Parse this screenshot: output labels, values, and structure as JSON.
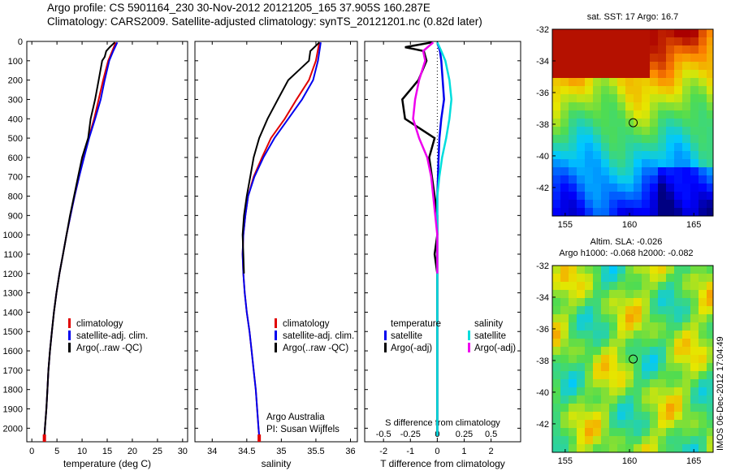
{
  "header": {
    "title_line1": "Argo profile: CS 5901164_230 30-Nov-2012 20121205_165 37.905S 160.287E",
    "title_line2": "Climatology: CARS2009. Satellite-adjusted climatology: synTS_20121201.nc (0.82d later)"
  },
  "colors": {
    "climatology": "#e00000",
    "satellite": "#0000ee",
    "argo": "#000000",
    "salinity_satellite": "#00dddd",
    "salinity_argo": "#ee00ee"
  },
  "chart_data": [
    {
      "type": "line",
      "name": "temperature-profile",
      "xlabel": "temperature (deg C)",
      "ylabel": "",
      "xlim": [
        -1,
        31
      ],
      "ylim": [
        2070,
        0
      ],
      "xticks": [
        0,
        5,
        10,
        15,
        20,
        25,
        30
      ],
      "yticks": [
        0,
        100,
        200,
        300,
        400,
        500,
        600,
        700,
        800,
        900,
        1000,
        1100,
        1200,
        1300,
        1400,
        1500,
        1600,
        1700,
        1800,
        1900,
        2000
      ],
      "legend": {
        "placement": "lower-center",
        "entries": [
          "climatology",
          "satellite-adj. clim.",
          "Argo(..raw -QC)"
        ]
      },
      "series": [
        {
          "name": "climatology",
          "color": "#e00000",
          "points": [
            [
              16.7,
              5
            ],
            [
              16,
              50
            ],
            [
              15.2,
              100
            ],
            [
              14.2,
              200
            ],
            [
              13.3,
              300
            ],
            [
              12.4,
              400
            ],
            [
              11.3,
              500
            ],
            [
              10.3,
              600
            ],
            [
              9.4,
              700
            ],
            [
              8.5,
              800
            ],
            [
              7.7,
              900
            ],
            [
              6.9,
              1000
            ],
            [
              6.2,
              1100
            ],
            [
              5.5,
              1200
            ],
            [
              4.9,
              1300
            ],
            [
              4.4,
              1400
            ],
            [
              4,
              1500
            ],
            [
              3.6,
              1600
            ],
            [
              3.3,
              1700
            ],
            [
              3.1,
              1800
            ],
            [
              2.9,
              1900
            ],
            [
              2.6,
              2000
            ],
            [
              2.5,
              2040
            ]
          ]
        },
        {
          "name": "satellite-adj. clim.",
          "color": "#0000ee",
          "points": [
            [
              17,
              5
            ],
            [
              16.2,
              50
            ],
            [
              15.4,
              100
            ],
            [
              14.5,
              200
            ],
            [
              13.7,
              300
            ],
            [
              12.6,
              400
            ],
            [
              11.4,
              500
            ],
            [
              10.4,
              600
            ],
            [
              9.4,
              700
            ],
            [
              8.5,
              800
            ],
            [
              7.7,
              900
            ],
            [
              6.9,
              1000
            ],
            [
              6.2,
              1100
            ],
            [
              5.5,
              1200
            ],
            [
              4.9,
              1300
            ],
            [
              4.4,
              1400
            ],
            [
              4,
              1500
            ],
            [
              3.6,
              1600
            ],
            [
              3.3,
              1700
            ],
            [
              3.1,
              1800
            ],
            [
              2.9,
              1900
            ],
            [
              2.6,
              2000
            ],
            [
              2.5,
              2040
            ]
          ]
        },
        {
          "name": "Argo(..raw -QC)",
          "color": "#000000",
          "points": [
            [
              16.5,
              5
            ],
            [
              15.5,
              30
            ],
            [
              14.8,
              50
            ],
            [
              14.5,
              80
            ],
            [
              14,
              100
            ],
            [
              13.3,
              200
            ],
            [
              12.6,
              300
            ],
            [
              11.7,
              400
            ],
            [
              11.2,
              500
            ],
            [
              10,
              600
            ],
            [
              9.2,
              700
            ],
            [
              8.4,
              800
            ],
            [
              7.6,
              900
            ],
            [
              6.9,
              1000
            ],
            [
              6.2,
              1100
            ],
            [
              5.5,
              1200
            ],
            [
              4.9,
              1300
            ],
            [
              4.4,
              1400
            ],
            [
              4,
              1500
            ],
            [
              3.6,
              1600
            ],
            [
              3.3,
              1700
            ],
            [
              3.1,
              1800
            ],
            [
              2.9,
              1900
            ],
            [
              2.6,
              2000
            ],
            [
              2.5,
              2040
            ]
          ]
        }
      ],
      "annotations": []
    },
    {
      "type": "line",
      "name": "salinity-profile",
      "xlabel": "salinity",
      "ylabel": "",
      "xlim": [
        33.75,
        36.1
      ],
      "ylim": [
        2070,
        0
      ],
      "xticks": [
        34,
        34.5,
        35,
        35.5,
        36
      ],
      "legend": {
        "placement": "lower-center",
        "entries": [
          "climatology",
          "satellite-adj. clim.",
          "Argo(..raw -QC)"
        ]
      },
      "series": [
        {
          "name": "climatology",
          "color": "#e00000",
          "points": [
            [
              35.55,
              5
            ],
            [
              35.5,
              100
            ],
            [
              35.4,
              200
            ],
            [
              35.22,
              300
            ],
            [
              35.05,
              400
            ],
            [
              34.85,
              500
            ],
            [
              34.72,
              600
            ],
            [
              34.6,
              700
            ],
            [
              34.52,
              800
            ],
            [
              34.48,
              900
            ],
            [
              34.45,
              1000
            ],
            [
              34.44,
              1100
            ],
            [
              34.45,
              1200
            ],
            [
              34.47,
              1300
            ],
            [
              34.5,
              1400
            ],
            [
              34.54,
              1500
            ],
            [
              34.57,
              1600
            ],
            [
              34.6,
              1700
            ],
            [
              34.63,
              1800
            ],
            [
              34.65,
              1900
            ],
            [
              34.67,
              2000
            ],
            [
              34.68,
              2040
            ]
          ]
        },
        {
          "name": "satellite-adj. clim.",
          "color": "#0000ee",
          "points": [
            [
              35.57,
              5
            ],
            [
              35.53,
              100
            ],
            [
              35.46,
              200
            ],
            [
              35.3,
              300
            ],
            [
              35.1,
              400
            ],
            [
              34.9,
              500
            ],
            [
              34.74,
              600
            ],
            [
              34.61,
              700
            ],
            [
              34.52,
              800
            ],
            [
              34.48,
              900
            ],
            [
              34.45,
              1000
            ],
            [
              34.44,
              1100
            ],
            [
              34.45,
              1200
            ],
            [
              34.47,
              1300
            ],
            [
              34.5,
              1400
            ],
            [
              34.54,
              1500
            ],
            [
              34.57,
              1600
            ],
            [
              34.6,
              1700
            ],
            [
              34.63,
              1800
            ],
            [
              34.65,
              1900
            ],
            [
              34.67,
              2000
            ],
            [
              34.68,
              2040
            ]
          ]
        },
        {
          "name": "Argo(..raw -QC)",
          "color": "#000000",
          "points": [
            [
              35.55,
              5
            ],
            [
              35.42,
              50
            ],
            [
              35.4,
              100
            ],
            [
              35.25,
              150
            ],
            [
              35.1,
              200
            ],
            [
              34.95,
              300
            ],
            [
              34.8,
              400
            ],
            [
              34.68,
              500
            ],
            [
              34.6,
              600
            ],
            [
              34.55,
              700
            ],
            [
              34.5,
              800
            ],
            [
              34.46,
              900
            ],
            [
              34.44,
              1000
            ],
            [
              34.45,
              1100
            ],
            [
              34.46,
              1200
            ]
          ]
        }
      ],
      "annotations": [
        "Argo Australia",
        "PI: Susan Wijffels"
      ]
    },
    {
      "type": "line",
      "name": "difference-profile",
      "xlabel": "T difference from climatology",
      "xlabel_top": "S difference from climatology",
      "ylabel": "",
      "xlim": [
        -2.7,
        3.1
      ],
      "ylim": [
        2070,
        0
      ],
      "xticks": [
        -2,
        -1,
        0,
        1,
        2
      ],
      "xticks_s": [
        -0.5,
        -0.25,
        0,
        0.25,
        0.5
      ],
      "legend": {
        "placement": "lower-center",
        "headers": [
          "temperature",
          "salinity"
        ],
        "entries": [
          "satellite",
          "Argo(-adj)",
          "satellite",
          "Argo(-adj)"
        ]
      },
      "series": [
        {
          "name": "temperature satellite",
          "color": "#0000ee",
          "points": [
            [
              0,
              5
            ],
            [
              0.1,
              50
            ],
            [
              0.15,
              100
            ],
            [
              0.2,
              200
            ],
            [
              0.25,
              300
            ],
            [
              0.15,
              400
            ],
            [
              0.08,
              500
            ],
            [
              0.05,
              600
            ],
            [
              0,
              800
            ],
            [
              0,
              2040
            ]
          ]
        },
        {
          "name": "temperature Argo(-adj)",
          "color": "#000000",
          "points": [
            [
              -0.2,
              5
            ],
            [
              -1.2,
              30
            ],
            [
              -0.5,
              50
            ],
            [
              -0.4,
              100
            ],
            [
              -0.7,
              200
            ],
            [
              -1.3,
              300
            ],
            [
              -1.2,
              400
            ],
            [
              -0.1,
              500
            ],
            [
              -0.3,
              600
            ],
            [
              -0.2,
              700
            ],
            [
              -0.1,
              800
            ],
            [
              0,
              900
            ],
            [
              0,
              1000
            ],
            [
              -0.1,
              1100
            ],
            [
              0,
              1200
            ],
            [
              0,
              2040
            ]
          ]
        },
        {
          "name": "salinity satellite",
          "color": "#00dddd",
          "points": [
            [
              0,
              5
            ],
            [
              0.1,
              50
            ],
            [
              0.2,
              100
            ],
            [
              0.3,
              200
            ],
            [
              0.35,
              300
            ],
            [
              0.3,
              400
            ],
            [
              0.22,
              500
            ],
            [
              0.12,
              600
            ],
            [
              0.05,
              700
            ],
            [
              0,
              800
            ],
            [
              0,
              2040
            ]
          ]
        },
        {
          "name": "salinity Argo(-adj)",
          "color": "#ee00ee",
          "points": [
            [
              -0.1,
              5
            ],
            [
              -0.35,
              50
            ],
            [
              -0.3,
              100
            ],
            [
              -0.45,
              200
            ],
            [
              -0.55,
              300
            ],
            [
              -0.6,
              400
            ],
            [
              -0.45,
              500
            ],
            [
              -0.25,
              600
            ],
            [
              -0.15,
              700
            ],
            [
              -0.1,
              800
            ],
            [
              -0.05,
              900
            ],
            [
              0,
              1000
            ],
            [
              0,
              1100
            ],
            [
              0,
              1200
            ]
          ]
        }
      ],
      "annotations": []
    },
    {
      "type": "heatmap",
      "name": "sst-map",
      "title": "sat. SST: 17 Argo: 16.7",
      "xlim": [
        154,
        166.5
      ],
      "ylim": [
        -43.8,
        -32
      ],
      "xticks": [
        155,
        160,
        165
      ],
      "yticks": [
        -32,
        -34,
        -36,
        -38,
        -40,
        -42
      ],
      "marker": {
        "lon": 160.287,
        "lat": -37.905
      }
    },
    {
      "type": "heatmap",
      "name": "sla-map",
      "title": "Altim. SLA: -0.026",
      "subtitle": "Argo h1000: -0.068 h2000: -0.082",
      "xlim": [
        154,
        166.5
      ],
      "ylim": [
        -43.8,
        -32
      ],
      "xticks": [
        155,
        160,
        165
      ],
      "yticks": [
        -32,
        -34,
        -36,
        -38,
        -40,
        -42
      ],
      "marker": {
        "lon": 160.287,
        "lat": -37.905
      }
    }
  ],
  "footer": {
    "vertical_label": "IMOS 06-Dec-2012 17:04:49"
  }
}
